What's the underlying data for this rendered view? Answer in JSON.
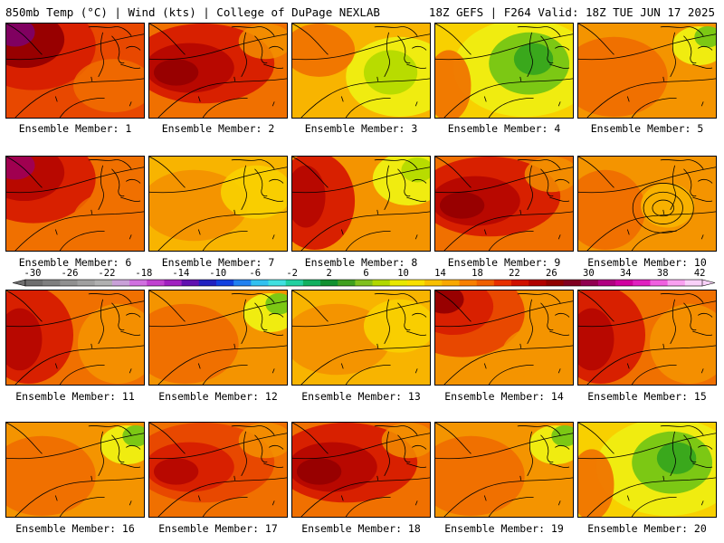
{
  "header": {
    "left": "850mb Temp (°C) | Wind (kts) | College of DuPage NEXLAB",
    "right": "18Z GEFS | F264 Valid: 18Z TUE JUN 17 2025"
  },
  "panels": [
    {
      "label": "Ensemble Member: 1",
      "pattern": "hot-nw",
      "warmth": 0.9
    },
    {
      "label": "Ensemble Member: 2",
      "pattern": "hot-center",
      "warmth": 0.8
    },
    {
      "label": "Ensemble Member: 3",
      "pattern": "cool-ne",
      "warmth": 0.45
    },
    {
      "label": "Ensemble Member: 4",
      "pattern": "cool-center",
      "warmth": 0.2
    },
    {
      "label": "Ensemble Member: 5",
      "pattern": "mild-ne",
      "warmth": 0.55
    },
    {
      "label": "Ensemble Member: 6",
      "pattern": "hot-nw",
      "warmth": 0.85
    },
    {
      "label": "Ensemble Member: 7",
      "pattern": "mild",
      "warmth": 0.45
    },
    {
      "label": "Ensemble Member: 8",
      "pattern": "hot-west-cool-ne",
      "warmth": 0.65
    },
    {
      "label": "Ensemble Member: 9",
      "pattern": "hot-center",
      "warmth": 0.8
    },
    {
      "label": "Ensemble Member: 10",
      "pattern": "ring",
      "warmth": 0.5
    },
    {
      "label": "Ensemble Member: 11",
      "pattern": "hot-west",
      "warmth": 0.7
    },
    {
      "label": "Ensemble Member: 12",
      "pattern": "mild-ne",
      "warmth": 0.55
    },
    {
      "label": "Ensemble Member: 13",
      "pattern": "mild",
      "warmth": 0.4
    },
    {
      "label": "Ensemble Member: 14",
      "pattern": "hot-nw",
      "warmth": 0.6
    },
    {
      "label": "Ensemble Member: 15",
      "pattern": "hot-west",
      "warmth": 0.75
    },
    {
      "label": "Ensemble Member: 16",
      "pattern": "mild-ne",
      "warmth": 0.5
    },
    {
      "label": "Ensemble Member: 17",
      "pattern": "hot-center",
      "warmth": 0.7
    },
    {
      "label": "Ensemble Member: 18",
      "pattern": "hot-center",
      "warmth": 0.85
    },
    {
      "label": "Ensemble Member: 19",
      "pattern": "mild-ne",
      "warmth": 0.55
    },
    {
      "label": "Ensemble Member: 20",
      "pattern": "cool-center",
      "warmth": 0.25
    }
  ],
  "colorbar": {
    "ticks": [
      "-30",
      "-26",
      "-22",
      "-18",
      "-14",
      "-10",
      "-6",
      "-2",
      "2",
      "6",
      "10",
      "14",
      "18",
      "22",
      "26",
      "30",
      "34",
      "38",
      "42"
    ],
    "colors": [
      "#6e6e6e",
      "#7f7f7f",
      "#909090",
      "#a0a0a0",
      "#b0b0b0",
      "#c8a0d8",
      "#d070e0",
      "#c040d0",
      "#a020c0",
      "#6010b0",
      "#2020c0",
      "#1040e0",
      "#2080f0",
      "#30c0f0",
      "#40e0e0",
      "#20d0a0",
      "#10b060",
      "#109030",
      "#40a020",
      "#80c020",
      "#b0d800",
      "#e8e800",
      "#f8e000",
      "#f8c000",
      "#f8a800",
      "#f88000",
      "#f06000",
      "#e83000",
      "#d01000",
      "#b00000",
      "#900000",
      "#800020",
      "#900050",
      "#b00080",
      "#d000a0",
      "#e020c0",
      "#f060e0",
      "#f8a0f0",
      "#f8d0f8"
    ]
  }
}
